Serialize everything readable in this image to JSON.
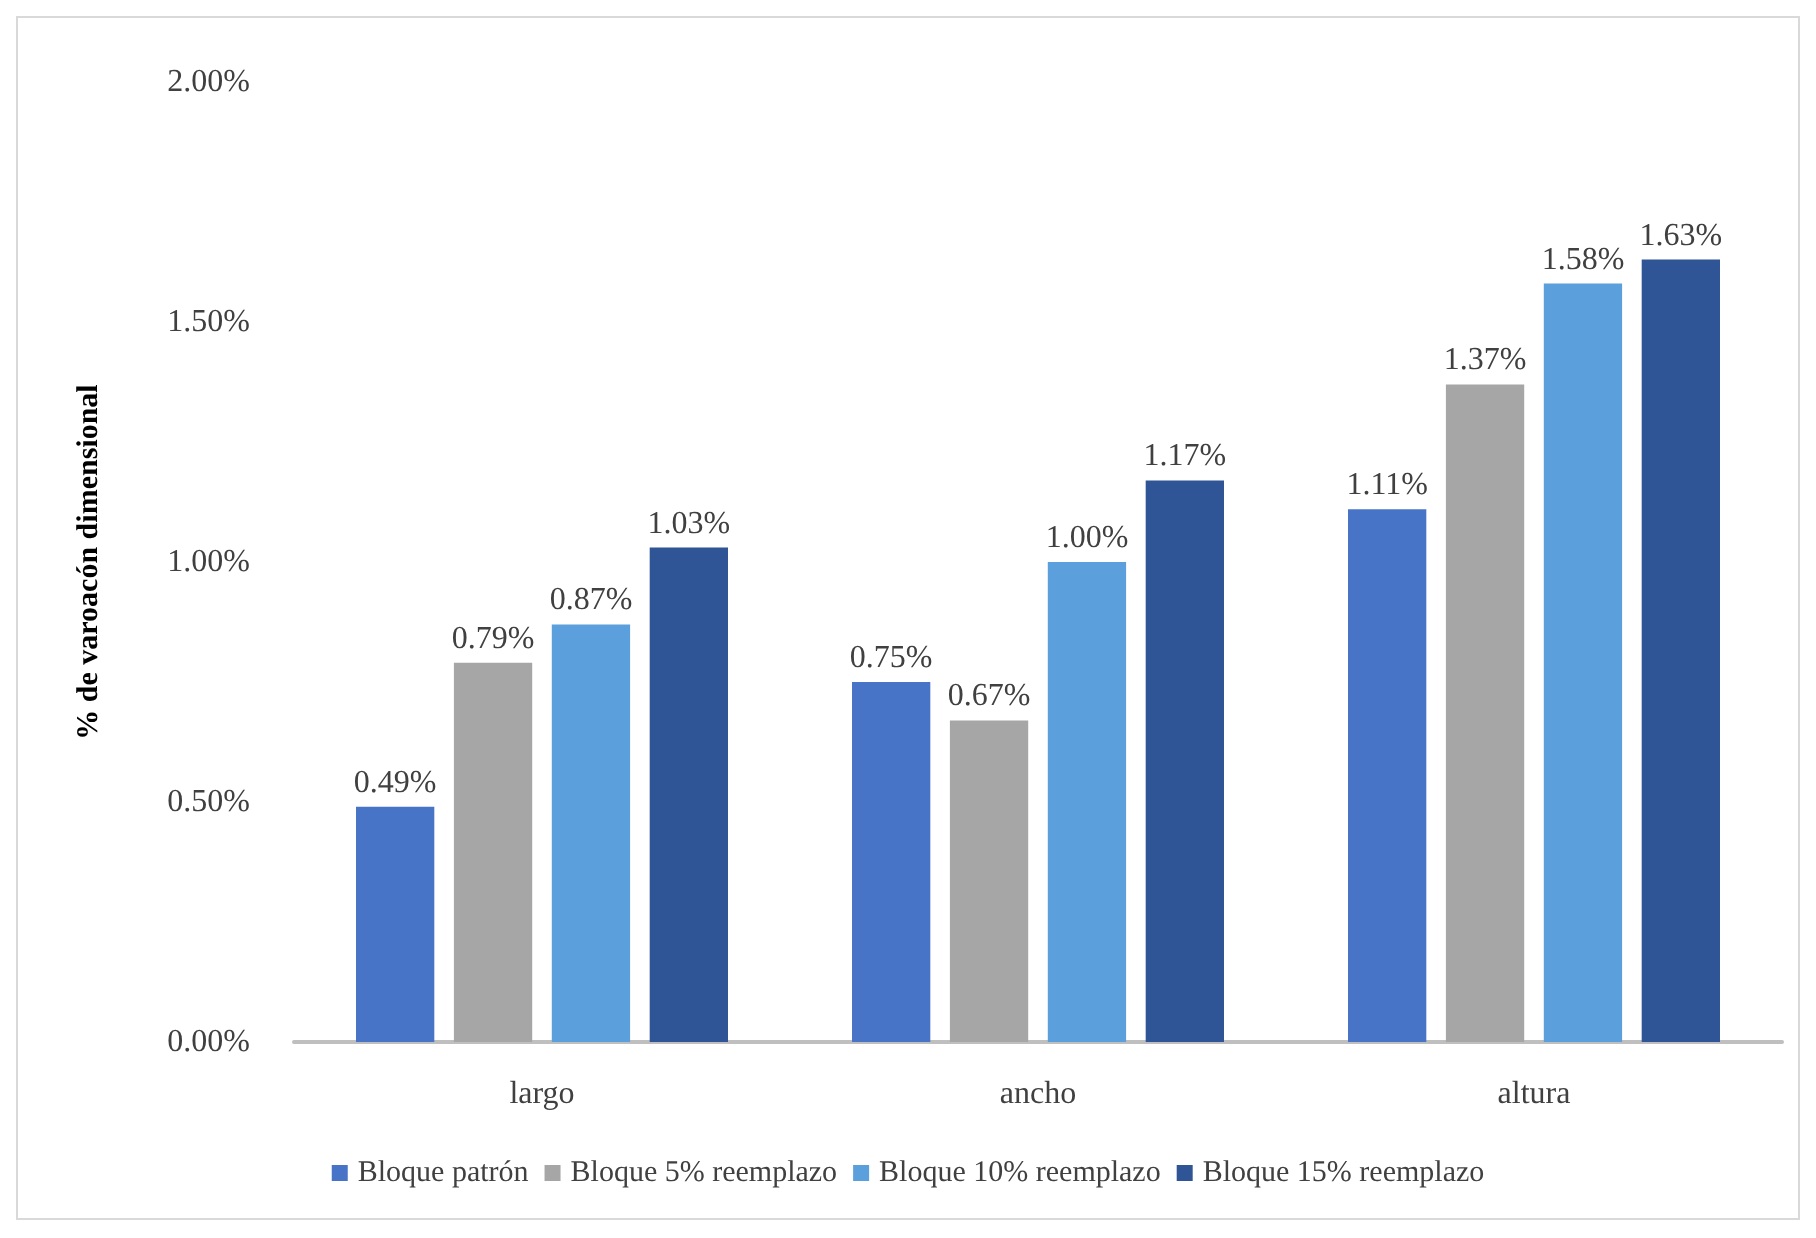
{
  "chart_data": {
    "type": "bar",
    "ylabel": "% de varoacón dimensional",
    "categories": [
      "largo",
      "ancho",
      "altura"
    ],
    "series": [
      {
        "name": "Bloque patrón",
        "color": "#4874c8",
        "values": [
          0.49,
          0.75,
          1.11
        ],
        "value_labels": [
          "0.49%",
          "0.75%",
          "1.11%"
        ]
      },
      {
        "name": "Bloque 5% reemplazo",
        "color": "#a6a6a6",
        "values": [
          0.79,
          0.67,
          1.37
        ],
        "value_labels": [
          "0.79%",
          "0.67%",
          "1.37%"
        ]
      },
      {
        "name": "Bloque 10% reemplazo",
        "color": "#5b9fdc",
        "values": [
          0.87,
          1.0,
          1.58
        ],
        "value_labels": [
          "0.87%",
          "1.00%",
          "1.58%"
        ]
      },
      {
        "name": "Bloque 15% reemplazo",
        "color": "#2f5597",
        "values": [
          1.03,
          1.17,
          1.63
        ],
        "value_labels": [
          "1.03%",
          "1.17%",
          "1.63%"
        ]
      }
    ],
    "ylim": [
      0,
      2
    ],
    "yticks": [
      {
        "value": 0,
        "label": "0.00%"
      },
      {
        "value": 0.5,
        "label": "0.50%"
      },
      {
        "value": 1,
        "label": "1.00%"
      },
      {
        "value": 1.5,
        "label": "1.50%"
      },
      {
        "value": 2,
        "label": "2.00%"
      }
    ],
    "legend": "bottom"
  }
}
